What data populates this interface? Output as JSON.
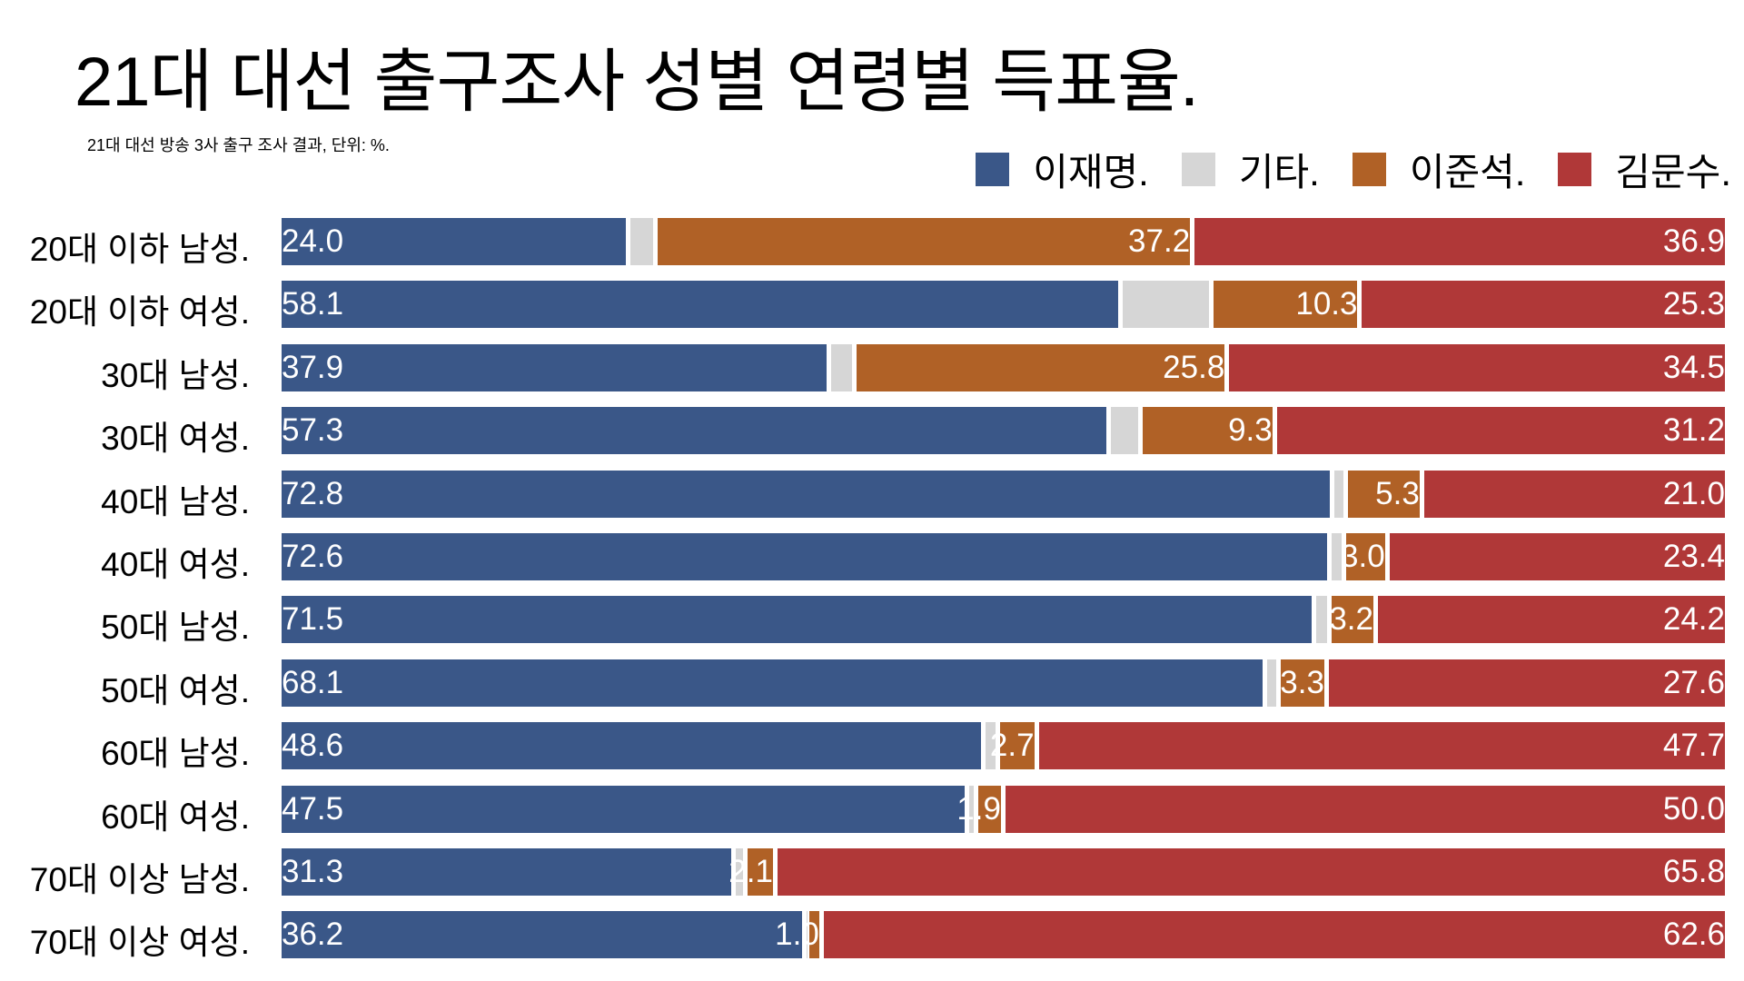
{
  "chart_data": {
    "type": "bar",
    "orientation": "horizontal",
    "stacked": true,
    "title": "21대 대선 출구조사 성별 연령별 득표율.",
    "subtitle": "21대 대선 방송 3사 출구 조사 결과, 단위: %.",
    "legend_position": "top-right",
    "xlim": [
      0,
      100
    ],
    "categories": [
      "20대 이하 남성.",
      "20대 이하 여성.",
      "30대 남성.",
      "30대 여성.",
      "40대 남성.",
      "40대 여성.",
      "50대 남성.",
      "50대 여성.",
      "60대 남성.",
      "60대 여성.",
      "70대 이상 남성.",
      "70대 이상 여성."
    ],
    "series": [
      {
        "name": "이재명.",
        "color": "#3a5788",
        "label_align": "start",
        "show_labels": true,
        "values": [
          24.0,
          58.1,
          37.9,
          57.3,
          72.8,
          72.6,
          71.5,
          68.1,
          48.6,
          47.5,
          31.3,
          36.2
        ]
      },
      {
        "name": "기타.",
        "color": "#d6d6d6",
        "label_align": "end",
        "show_labels": false,
        "values": [
          1.9,
          6.3,
          1.8,
          2.2,
          0.9,
          1.0,
          1.1,
          1.0,
          1.0,
          0.6,
          0.8,
          0.2
        ]
      },
      {
        "name": "이준석.",
        "color": "#b06126",
        "label_align": "end",
        "show_labels": true,
        "values": [
          37.2,
          10.3,
          25.8,
          9.3,
          5.3,
          3.0,
          3.2,
          3.3,
          2.7,
          1.9,
          2.1,
          1.0
        ]
      },
      {
        "name": "김문수.",
        "color": "#b03838",
        "label_align": "end",
        "show_labels": true,
        "values": [
          36.9,
          25.3,
          34.5,
          31.2,
          21.0,
          23.4,
          24.2,
          27.6,
          47.7,
          50.0,
          65.8,
          62.6
        ]
      }
    ]
  }
}
